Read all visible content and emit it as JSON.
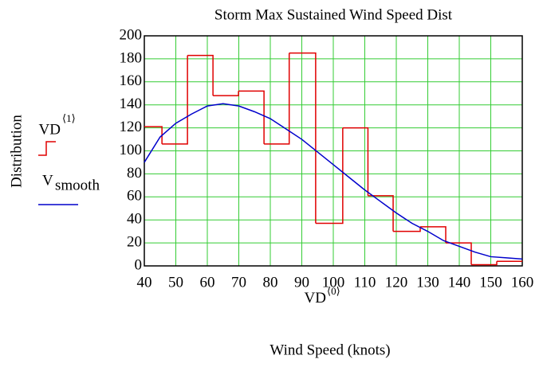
{
  "chart_data": {
    "type": "step-and-line",
    "title": "Storm Max Sustained Wind Speed Dist",
    "y_label": "Distribution",
    "x_axis_label": {
      "text": "VD",
      "superscript": "⟨0⟩"
    },
    "x_title": "Wind Speed (knots)",
    "xlim": [
      40,
      160
    ],
    "ylim": [
      0,
      200
    ],
    "xticks": [
      40,
      50,
      60,
      70,
      80,
      90,
      100,
      110,
      120,
      130,
      140,
      150,
      160
    ],
    "yticks": [
      0,
      20,
      40,
      60,
      80,
      100,
      120,
      140,
      160,
      180,
      200
    ],
    "grid": true,
    "grid_color": "#33cc33",
    "series": [
      {
        "name": "VD",
        "name_superscript": "⟨1⟩",
        "kind": "step",
        "color": "#e00000",
        "bins": [
          40,
          45.6,
          53.7,
          61.8,
          69.9,
          78,
          86,
          94.4,
          103,
          111,
          119,
          127.6,
          135.7,
          143.8,
          151.9,
          160
        ],
        "values": [
          121,
          106,
          183,
          148,
          152,
          106,
          185,
          37,
          120,
          61,
          30,
          34,
          20,
          1,
          4
        ]
      },
      {
        "name": "V",
        "name_subscript": "smooth",
        "kind": "line",
        "color": "#0000cc",
        "x": [
          40,
          45,
          50,
          55,
          60,
          65,
          70,
          75,
          80,
          85,
          90,
          95,
          100,
          105,
          110,
          115,
          120,
          125,
          130,
          135,
          140,
          145,
          150,
          155,
          160
        ],
        "values": [
          90,
          112,
          124,
          132,
          139,
          141,
          139,
          134,
          128,
          119,
          110,
          99,
          88,
          77,
          66,
          56,
          46,
          37,
          30,
          22,
          17,
          12,
          8,
          7,
          6
        ]
      }
    ]
  }
}
